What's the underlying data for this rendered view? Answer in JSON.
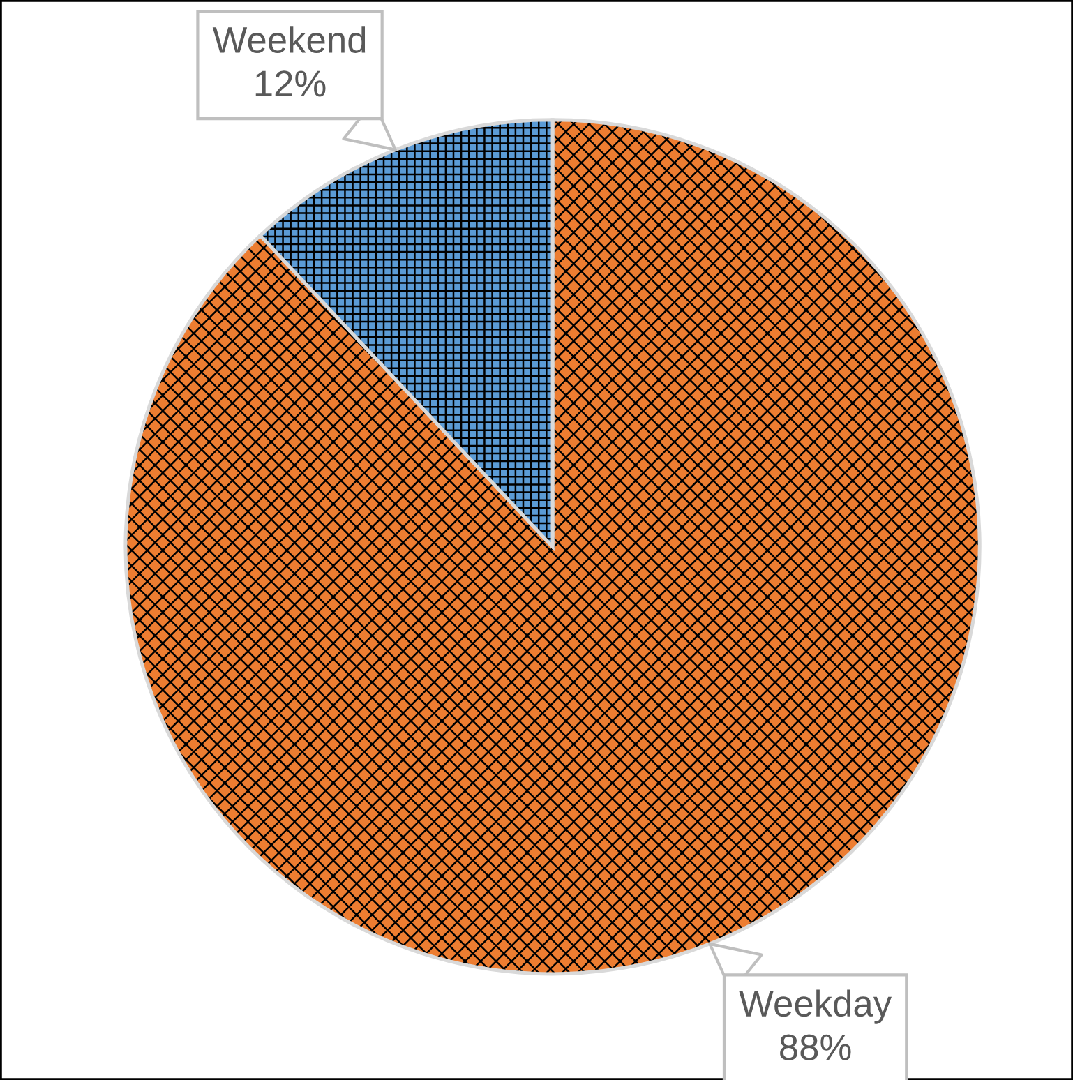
{
  "chart_data": {
    "type": "pie",
    "categories": [
      "Weekday",
      "Weekend"
    ],
    "values": [
      88,
      12
    ],
    "colors": [
      "#ed7d31",
      "#5b9bd5"
    ],
    "value_labels": [
      "88%",
      "12%"
    ]
  }
}
